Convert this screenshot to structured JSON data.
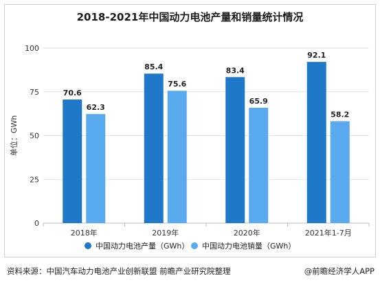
{
  "chart_data": {
    "type": "bar",
    "title": "2018-2021年中国动力电池产量和销量统计情况",
    "ylabel": "单位：GWh",
    "xlabel": "",
    "categories": [
      "2018年",
      "2019年",
      "2020年",
      "2021年1-7月"
    ],
    "series": [
      {
        "name": "中国动力电池产量（GWh）",
        "color": "#1f78c8",
        "values": [
          70.6,
          85.4,
          83.4,
          92.1
        ]
      },
      {
        "name": "中国动力电池销量（GWh）",
        "color": "#5aaaf0",
        "values": [
          62.3,
          75.6,
          65.9,
          58.2
        ]
      }
    ],
    "ylim": [
      0,
      100
    ],
    "yticks": [
      0,
      25,
      50,
      75,
      100
    ],
    "grid": true,
    "legend": "bottom"
  },
  "footer": {
    "source": "资料来源：中国汽车动力电池产业创新联盟 前瞻产业研究院整理",
    "brand": "@前瞻经济学人APP"
  }
}
